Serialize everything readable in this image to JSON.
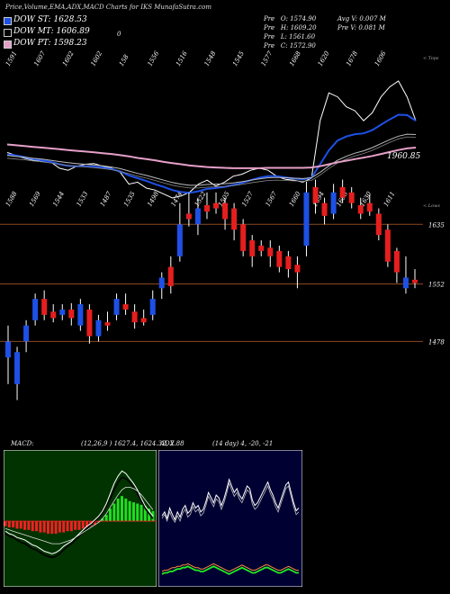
{
  "header": {
    "title": "Price,Volume,EMA,ADX,MACD Charts for IKS MunafaSutra.com"
  },
  "dow": [
    {
      "label": "DOW ST:",
      "value": "1628.53",
      "color": "#1e50e6"
    },
    {
      "label": "DOW MT:",
      "value": "1606.89",
      "color": "#000000"
    },
    {
      "label": "DOW PT:",
      "value": "1598.23",
      "color": "#e6a0c8"
    }
  ],
  "ohlc": {
    "open": "O: 1574.90",
    "high": "H: 1609.20",
    "low": "L: 1561.60",
    "close": "C: 1572.90",
    "pre_o": "Pre",
    "pre_h": "Pre",
    "pre_l": "Pre",
    "pre_c": "Pre",
    "avg_v": "Avg V: 0.007 M",
    "pre_v": "Pre   V: 0.081 M"
  },
  "misc": {
    "zero_mark": "0"
  },
  "chart_data": [
    {
      "type": "line",
      "title": "",
      "top_labels": [
        "1591",
        "1607",
        "1602",
        "1602",
        "158",
        "1556",
        "1516",
        "1548",
        "1545",
        "1577",
        "1668",
        "1620",
        "1678",
        "1606"
      ],
      "bottom_labels": [
        "1588",
        "1569",
        "1544",
        "1533",
        "1487",
        "1535",
        "1498",
        "1474",
        "1522",
        "1505",
        "1527",
        "1567",
        "1660",
        "1694",
        "1698",
        "1630",
        "1611"
      ],
      "corner_top": "< Tops",
      "corner_bottom": "< Lows",
      "last_value_label": "1960.85",
      "series": [
        {
          "values": [
            1620,
            1612,
            1605,
            1600,
            1598,
            1596,
            1580,
            1575,
            1585,
            1590,
            1592,
            1585,
            1580,
            1570,
            1540,
            1545,
            1530,
            1525,
            1515,
            1505,
            1510,
            1520,
            1540,
            1550,
            1535,
            1545,
            1560,
            1565,
            1575,
            1580,
            1575,
            1560,
            1552,
            1550,
            1545,
            1555,
            1700,
            1770,
            1760,
            1735,
            1725,
            1700,
            1720,
            1760,
            1785,
            1800,
            1760,
            1700
          ]
        },
        {
          "values": [
            1615,
            1612,
            1608,
            1603,
            1600,
            1596,
            1590,
            1586,
            1585,
            1585,
            1584,
            1582,
            1578,
            1572,
            1562,
            1555,
            1548,
            1540,
            1533,
            1525,
            1520,
            1518,
            1522,
            1528,
            1530,
            1533,
            1538,
            1543,
            1550,
            1556,
            1560,
            1560,
            1557,
            1554,
            1552,
            1556,
            1590,
            1625,
            1650,
            1660,
            1666,
            1668,
            1676,
            1690,
            1703,
            1715,
            1714,
            1700
          ]
        },
        {
          "values": [
            1612,
            1610,
            1608,
            1605,
            1603,
            1600,
            1597,
            1594,
            1592,
            1590,
            1588,
            1586,
            1583,
            1579,
            1573,
            1567,
            1562,
            1556,
            1550,
            1544,
            1540,
            1537,
            1537,
            1539,
            1540,
            1541,
            1543,
            1546,
            1550,
            1553,
            1556,
            1557,
            1556,
            1555,
            1554,
            1556,
            1570,
            1586,
            1600,
            1610,
            1618,
            1624,
            1632,
            1642,
            1652,
            1661,
            1666,
            1665
          ]
        },
        {
          "values": [
            1640,
            1638,
            1636,
            1634,
            1632,
            1630,
            1628,
            1626,
            1624,
            1622,
            1620,
            1618,
            1616,
            1613,
            1610,
            1606,
            1603,
            1600,
            1596,
            1593,
            1590,
            1587,
            1585,
            1583,
            1582,
            1581,
            1580,
            1580,
            1580,
            1580,
            1581,
            1581,
            1581,
            1581,
            1581,
            1582,
            1585,
            1590,
            1595,
            1599,
            1603,
            1607,
            1611,
            1616,
            1621,
            1626,
            1630,
            1632
          ]
        }
      ],
      "candles": [
        {
          "o": 1545,
          "c": 1560,
          "h": 1575,
          "l": 1520
        },
        {
          "o": 1520,
          "c": 1550,
          "h": 1555,
          "l": 1505
        },
        {
          "o": 1560,
          "c": 1575,
          "h": 1580,
          "l": 1550
        },
        {
          "o": 1580,
          "c": 1600,
          "h": 1605,
          "l": 1575
        },
        {
          "o": 1600,
          "c": 1585,
          "h": 1608,
          "l": 1580
        },
        {
          "o": 1588,
          "c": 1582,
          "h": 1595,
          "l": 1578
        },
        {
          "o": 1585,
          "c": 1590,
          "h": 1595,
          "l": 1580
        },
        {
          "o": 1590,
          "c": 1582,
          "h": 1596,
          "l": 1575
        },
        {
          "o": 1575,
          "c": 1595,
          "h": 1600,
          "l": 1570
        },
        {
          "o": 1590,
          "c": 1565,
          "h": 1595,
          "l": 1558
        },
        {
          "o": 1565,
          "c": 1580,
          "h": 1585,
          "l": 1560
        },
        {
          "o": 1578,
          "c": 1575,
          "h": 1588,
          "l": 1570
        },
        {
          "o": 1585,
          "c": 1600,
          "h": 1605,
          "l": 1580
        },
        {
          "o": 1595,
          "c": 1590,
          "h": 1605,
          "l": 1585
        },
        {
          "o": 1588,
          "c": 1578,
          "h": 1595,
          "l": 1572
        },
        {
          "o": 1582,
          "c": 1578,
          "h": 1590,
          "l": 1575
        },
        {
          "o": 1585,
          "c": 1600,
          "h": 1608,
          "l": 1580
        },
        {
          "o": 1610,
          "c": 1620,
          "h": 1625,
          "l": 1600
        },
        {
          "o": 1630,
          "c": 1612,
          "h": 1640,
          "l": 1605
        },
        {
          "o": 1640,
          "c": 1670,
          "h": 1690,
          "l": 1635
        },
        {
          "o": 1680,
          "c": 1675,
          "h": 1700,
          "l": 1668
        },
        {
          "o": 1670,
          "c": 1685,
          "h": 1695,
          "l": 1660
        },
        {
          "o": 1688,
          "c": 1682,
          "h": 1700,
          "l": 1675
        },
        {
          "o": 1690,
          "c": 1685,
          "h": 1700,
          "l": 1680
        },
        {
          "o": 1690,
          "c": 1675,
          "h": 1695,
          "l": 1665
        },
        {
          "o": 1685,
          "c": 1665,
          "h": 1690,
          "l": 1655
        },
        {
          "o": 1670,
          "c": 1645,
          "h": 1675,
          "l": 1640
        },
        {
          "o": 1655,
          "c": 1640,
          "h": 1660,
          "l": 1630
        },
        {
          "o": 1650,
          "c": 1645,
          "h": 1655,
          "l": 1640
        },
        {
          "o": 1648,
          "c": 1640,
          "h": 1655,
          "l": 1630
        },
        {
          "o": 1645,
          "c": 1630,
          "h": 1650,
          "l": 1625
        },
        {
          "o": 1640,
          "c": 1628,
          "h": 1645,
          "l": 1620
        },
        {
          "o": 1632,
          "c": 1625,
          "h": 1640,
          "l": 1610
        },
        {
          "o": 1650,
          "c": 1700,
          "h": 1710,
          "l": 1640
        },
        {
          "o": 1705,
          "c": 1690,
          "h": 1712,
          "l": 1680
        },
        {
          "o": 1690,
          "c": 1678,
          "h": 1695,
          "l": 1670
        },
        {
          "o": 1680,
          "c": 1700,
          "h": 1708,
          "l": 1675
        },
        {
          "o": 1705,
          "c": 1695,
          "h": 1712,
          "l": 1690
        },
        {
          "o": 1700,
          "c": 1690,
          "h": 1705,
          "l": 1685
        },
        {
          "o": 1688,
          "c": 1680,
          "h": 1695,
          "l": 1675
        },
        {
          "o": 1690,
          "c": 1682,
          "h": 1698,
          "l": 1678
        },
        {
          "o": 1680,
          "c": 1660,
          "h": 1685,
          "l": 1655
        },
        {
          "o": 1665,
          "c": 1635,
          "h": 1670,
          "l": 1630
        },
        {
          "o": 1645,
          "c": 1625,
          "h": 1648,
          "l": 1615
        },
        {
          "o": 1610,
          "c": 1620,
          "h": 1640,
          "l": 1605
        },
        {
          "o": 1618,
          "c": 1615,
          "h": 1628,
          "l": 1610
        }
      ],
      "levels": [
        {
          "value": 1670,
          "label": "1635"
        },
        {
          "value": 1614,
          "label": "1552"
        },
        {
          "value": 1560,
          "label": "1478"
        }
      ],
      "ylim": [
        1475,
        1830
      ]
    },
    {
      "type": "area",
      "title": "MACD:",
      "subtitle": "(12,26,9 ) 1627.4,  1624.32, 2.88",
      "ylim": [
        -60,
        60
      ],
      "hist": [
        -4,
        -5,
        -5,
        -6,
        -6,
        -7,
        -7,
        -8,
        -8,
        -9,
        -9,
        -10,
        -10,
        -10,
        -9,
        -9,
        -8,
        -8,
        -7,
        -7,
        -6,
        -5,
        -4,
        -3,
        -1,
        2,
        5,
        10,
        14,
        18,
        20,
        18,
        16,
        15,
        14,
        13,
        12,
        10,
        8
      ],
      "macd": [
        -8,
        -10,
        -11,
        -13,
        -14,
        -15,
        -17,
        -19,
        -20,
        -22,
        -24,
        -25,
        -26,
        -25,
        -23,
        -20,
        -18,
        -16,
        -13,
        -10,
        -7,
        -4,
        -2,
        1,
        4,
        8,
        14,
        22,
        30,
        36,
        40,
        38,
        34,
        30,
        25,
        18,
        12,
        8,
        4
      ],
      "signal": [
        -6,
        -7,
        -8,
        -9,
        -10,
        -11,
        -12,
        -13,
        -14,
        -15,
        -16,
        -17,
        -18,
        -18,
        -18,
        -17,
        -16,
        -15,
        -13,
        -11,
        -9,
        -7,
        -5,
        -3,
        -1,
        2,
        6,
        11,
        16,
        21,
        25,
        27,
        27,
        26,
        24,
        21,
        17,
        13,
        9
      ],
      "macd2": [
        -10,
        -12,
        -13,
        -15,
        -17,
        -18,
        -20,
        -22,
        -23,
        -25,
        -27,
        -28,
        -29,
        -28,
        -26,
        -23,
        -20,
        -18,
        -15,
        -12,
        -9,
        -6,
        -3,
        0,
        3,
        7,
        12,
        18,
        25,
        31,
        35,
        34,
        31,
        27,
        22,
        16,
        10,
        6,
        2
      ]
    },
    {
      "type": "line",
      "title": "ADX",
      "subtitle": "(14 day) 4, -20, -21",
      "ylim": [
        0,
        100
      ],
      "plus_di": [
        52,
        55,
        50,
        58,
        53,
        49,
        55,
        51,
        57,
        60,
        54,
        56,
        62,
        58,
        60,
        55,
        57,
        63,
        70,
        66,
        62,
        68,
        66,
        60,
        65,
        72,
        80,
        75,
        70,
        73,
        68,
        65,
        70,
        75,
        73,
        64,
        60,
        62,
        66,
        70,
        74,
        78,
        72,
        68,
        62,
        58,
        64,
        70,
        76,
        78,
        70,
        62,
        56,
        58
      ],
      "minus_di": [
        50,
        53,
        48,
        55,
        50,
        47,
        52,
        48,
        54,
        57,
        51,
        53,
        59,
        55,
        57,
        52,
        54,
        60,
        67,
        63,
        59,
        65,
        63,
        57,
        62,
        69,
        77,
        72,
        67,
        70,
        65,
        62,
        67,
        72,
        70,
        61,
        57,
        59,
        63,
        67,
        71,
        75,
        69,
        65,
        59,
        55,
        61,
        67,
        73,
        75,
        67,
        59,
        53,
        55
      ],
      "adx": [
        7,
        8,
        8,
        9,
        9,
        10,
        11,
        11,
        12,
        12,
        13,
        12,
        11,
        10,
        10,
        9,
        9,
        10,
        11,
        12,
        13,
        12,
        11,
        10,
        9,
        8,
        7,
        8,
        9,
        10,
        11,
        12,
        11,
        10,
        9,
        8,
        8,
        9,
        10,
        11,
        12,
        12,
        11,
        10,
        9,
        8,
        8,
        9,
        10,
        11,
        10,
        9,
        8,
        8
      ],
      "adx2": [
        9,
        10,
        10,
        11,
        12,
        12,
        13,
        13,
        14,
        14,
        15,
        14,
        13,
        12,
        12,
        11,
        11,
        12,
        13,
        14,
        15,
        14,
        13,
        12,
        11,
        10,
        9,
        10,
        11,
        12,
        13,
        14,
        13,
        12,
        11,
        10,
        10,
        11,
        12,
        13,
        14,
        14,
        13,
        12,
        11,
        10,
        10,
        11,
        12,
        13,
        12,
        11,
        10,
        10
      ]
    }
  ],
  "colors": {
    "up": "#1e50e6",
    "down": "#e61e1e",
    "level": "#8a4a20",
    "ema_st": "#1e50e6",
    "ema_pt": "#e6a0c8",
    "macd_bg": "#003300",
    "adx_bg": "#000033"
  }
}
